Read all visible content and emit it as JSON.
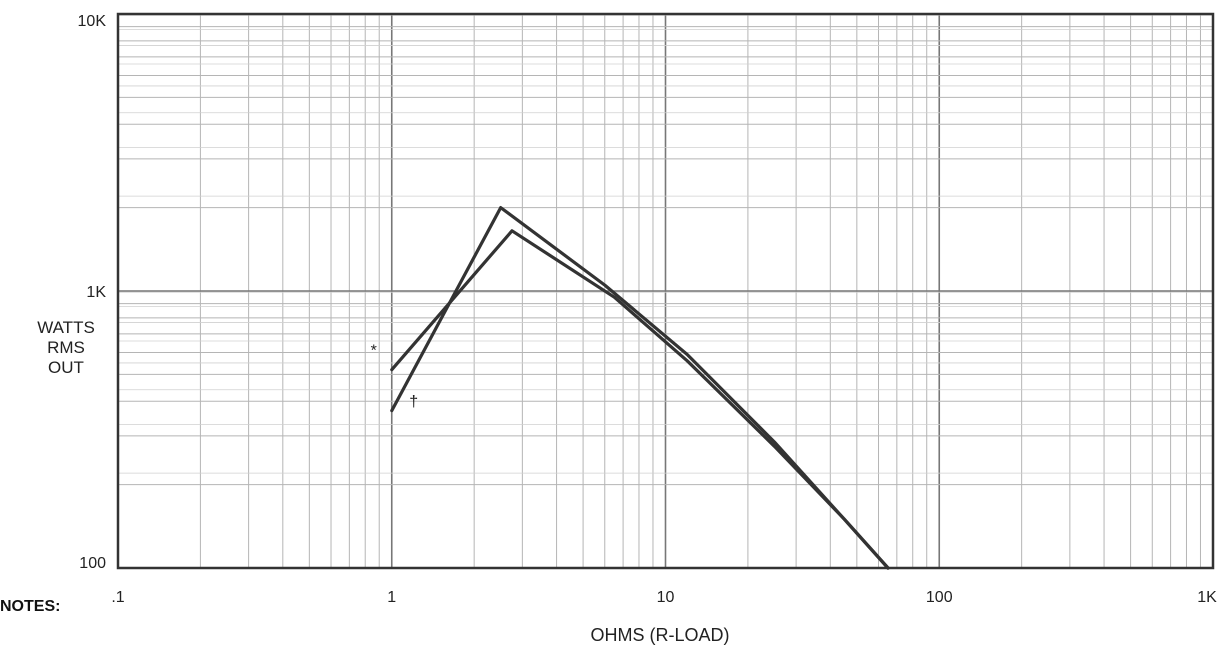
{
  "chart_data": {
    "type": "line",
    "x_scale": "log",
    "y_scale": "log",
    "xlim": [
      0.1,
      1000
    ],
    "ylim": [
      100,
      10000
    ],
    "grid": true,
    "xlabel": "OHMS (R-LOAD)",
    "ylabel_lines": [
      "WATTS",
      "RMS",
      "OUT"
    ],
    "x_ticks": [
      {
        "value": 0.1,
        "label": ".1"
      },
      {
        "value": 1,
        "label": "1"
      },
      {
        "value": 10,
        "label": "10"
      },
      {
        "value": 100,
        "label": "100"
      },
      {
        "value": 1000,
        "label": "1K"
      }
    ],
    "y_ticks": [
      {
        "value": 100,
        "label": "100"
      },
      {
        "value": 1000,
        "label": "1K"
      },
      {
        "value": 10000,
        "label": "10K"
      }
    ],
    "series": [
      {
        "marker": "*",
        "x": [
          1.0,
          2.75,
          6.5,
          12,
          25,
          45,
          65
        ],
        "y": [
          520,
          1650,
          950,
          560,
          275,
          150,
          100
        ]
      },
      {
        "marker": "†",
        "x": [
          1.0,
          2.5,
          6.0,
          12,
          25,
          45,
          65
        ],
        "y": [
          370,
          2000,
          1050,
          590,
          285,
          150,
          100
        ]
      }
    ],
    "line_color": "#333333"
  },
  "notes": {
    "title": "NOTES:"
  }
}
